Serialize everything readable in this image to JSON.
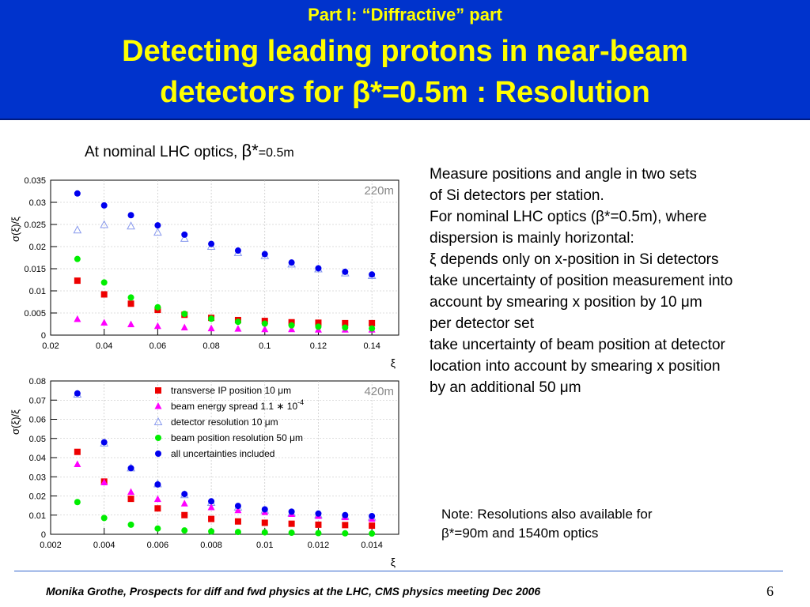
{
  "header": {
    "kicker": "Part I: “Diffractive” part",
    "line1": "Detecting leading protons in near-beam",
    "line2": "detectors for β*=0.5m : Resolution"
  },
  "subtitle": {
    "prefix": "At nominal LHC optics, ",
    "symbol": "β*",
    "value": "=0.5m"
  },
  "description": [
    "Measure positions and angle in two sets",
    "of Si detectors per station.",
    "For nominal LHC optics (β*=0.5m), where",
    "dispersion is mainly horizontal:",
    "ξ depends only on x-position in Si detectors",
    "take uncertainty of position measurement into",
    "account by smearing x position by 10 μm",
    "per detector set",
    "take uncertainty of beam position at detector",
    "location into account by smearing x position",
    "by an additional 50   μm"
  ],
  "note": {
    "line1": "Note: Resolutions also available for",
    "line2": "β*=90m and 1540m optics"
  },
  "footer": {
    "text": "Monika Grothe, Prospects for diff and fwd physics at the LHC, CMS physics meeting Dec 2006",
    "page": "6"
  },
  "colors": {
    "header_bg": "#0033cc",
    "header_text": "#ffff00",
    "transverse": "#ee0000",
    "energy": "#ff00ff",
    "detector": "#8899ee",
    "beam": "#00ee00",
    "all": "#0000ee"
  },
  "chart_data": [
    {
      "type": "scatter",
      "label": "220m",
      "xlabel": "ξ",
      "ylabel": "σ(ξ)/ξ",
      "xlim": [
        0.02,
        0.15
      ],
      "ylim": [
        0,
        0.035
      ],
      "xticks": [
        "0.02",
        "0.04",
        "0.06",
        "0.08",
        "0.1",
        "0.12",
        "0.14"
      ],
      "yticks": [
        "0",
        "0.005",
        "0.01",
        "0.015",
        "0.02",
        "0.025",
        "0.03",
        "0.035"
      ],
      "x": [
        0.03,
        0.04,
        0.05,
        0.06,
        0.07,
        0.08,
        0.09,
        0.1,
        0.11,
        0.12,
        0.13,
        0.14
      ],
      "series": [
        {
          "key": "transverse",
          "marker": "square",
          "values": [
            0.0123,
            0.0092,
            0.0071,
            0.0057,
            0.0046,
            0.0039,
            0.0034,
            0.0032,
            0.0029,
            0.0028,
            0.0027,
            0.0027
          ]
        },
        {
          "key": "energy",
          "marker": "triangle",
          "values": [
            0.0036,
            0.0028,
            0.0024,
            0.002,
            0.0017,
            0.0015,
            0.0014,
            0.0013,
            0.0013,
            0.0012,
            0.0012,
            0.0012
          ]
        },
        {
          "key": "detector",
          "marker": "open-triangle",
          "values": [
            0.0237,
            0.0249,
            0.0246,
            0.0232,
            0.0218,
            0.02,
            0.0186,
            0.0179,
            0.016,
            0.0149,
            0.014,
            0.0134
          ]
        },
        {
          "key": "beam",
          "marker": "circle",
          "values": [
            0.0172,
            0.0119,
            0.0085,
            0.0063,
            0.0048,
            0.0037,
            0.003,
            0.0026,
            0.0022,
            0.0019,
            0.0017,
            0.0015
          ]
        },
        {
          "key": "all",
          "marker": "circle",
          "values": [
            0.032,
            0.0293,
            0.0271,
            0.0248,
            0.0227,
            0.0206,
            0.0191,
            0.0183,
            0.0164,
            0.0151,
            0.0143,
            0.0137
          ]
        }
      ]
    },
    {
      "type": "scatter",
      "label": "420m",
      "xlabel": "ξ",
      "ylabel": "σ(ξ)/ξ",
      "xlim": [
        0.002,
        0.015
      ],
      "ylim": [
        0,
        0.08
      ],
      "xticks": [
        "0.002",
        "0.004",
        "0.006",
        "0.008",
        "0.01",
        "0.012",
        "0.014"
      ],
      "yticks": [
        "0",
        "0.01",
        "0.02",
        "0.03",
        "0.04",
        "0.05",
        "0.06",
        "0.07",
        "0.08"
      ],
      "x": [
        0.003,
        0.004,
        0.005,
        0.006,
        0.007,
        0.008,
        0.009,
        0.01,
        0.011,
        0.012,
        0.013,
        0.014
      ],
      "legend_location": "upper-middle",
      "series": [
        {
          "key": "transverse",
          "name": "transverse IP position 10 μm",
          "marker": "square",
          "values": [
            0.043,
            0.0275,
            0.0185,
            0.0135,
            0.01,
            0.008,
            0.0067,
            0.006,
            0.0055,
            0.005,
            0.0048,
            0.0045
          ]
        },
        {
          "key": "energy",
          "name": "beam energy spread 1.1 ∗ 10",
          "name_exponent": "-4",
          "marker": "triangle",
          "values": [
            0.0365,
            0.027,
            0.022,
            0.0183,
            0.016,
            0.014,
            0.0125,
            0.0115,
            0.0105,
            0.0095,
            0.0088,
            0.008
          ]
        },
        {
          "key": "detector",
          "name": "detector resolution 10 μm",
          "marker": "open-triangle",
          "values": [
            0.073,
            0.0475,
            0.0345,
            0.0262,
            0.0205,
            0.0165,
            0.014,
            0.0125,
            0.011,
            0.01,
            0.0093,
            0.0088
          ]
        },
        {
          "key": "beam",
          "name": "beam position resolution 50 μm",
          "marker": "circle",
          "values": [
            0.0168,
            0.0085,
            0.005,
            0.003,
            0.002,
            0.0015,
            0.0012,
            0.001,
            0.0008,
            0.0006,
            0.0005,
            0.0004
          ]
        },
        {
          "key": "all",
          "name": "all uncertainties included",
          "marker": "circle",
          "values": [
            0.0735,
            0.048,
            0.0345,
            0.026,
            0.021,
            0.0172,
            0.0148,
            0.013,
            0.0118,
            0.0108,
            0.01,
            0.0095
          ]
        }
      ]
    }
  ]
}
